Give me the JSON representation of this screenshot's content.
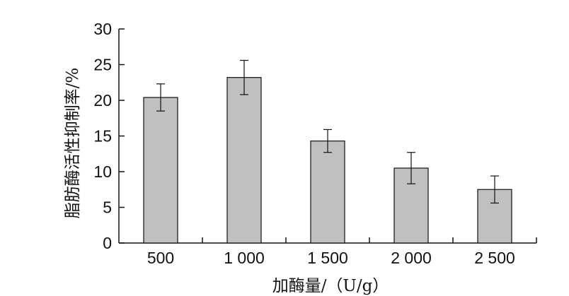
{
  "chart_data": {
    "type": "bar",
    "title": "",
    "xlabel": "加酶量/（U/g）",
    "ylabel": "脂肪酶活性抑制率/%",
    "categories": [
      "500",
      "1 000",
      "1 500",
      "2 000",
      "2 500"
    ],
    "values": [
      20.4,
      23.2,
      14.3,
      10.5,
      7.5
    ],
    "errors": [
      1.9,
      2.4,
      1.6,
      2.2,
      1.9
    ],
    "ylim": [
      0,
      30
    ],
    "yticks": [
      "0",
      "5",
      "10",
      "15",
      "20",
      "25",
      "30"
    ],
    "grid": false,
    "legend": "none",
    "bar_color": "#c0c0c0",
    "edge_color": "#111111"
  }
}
